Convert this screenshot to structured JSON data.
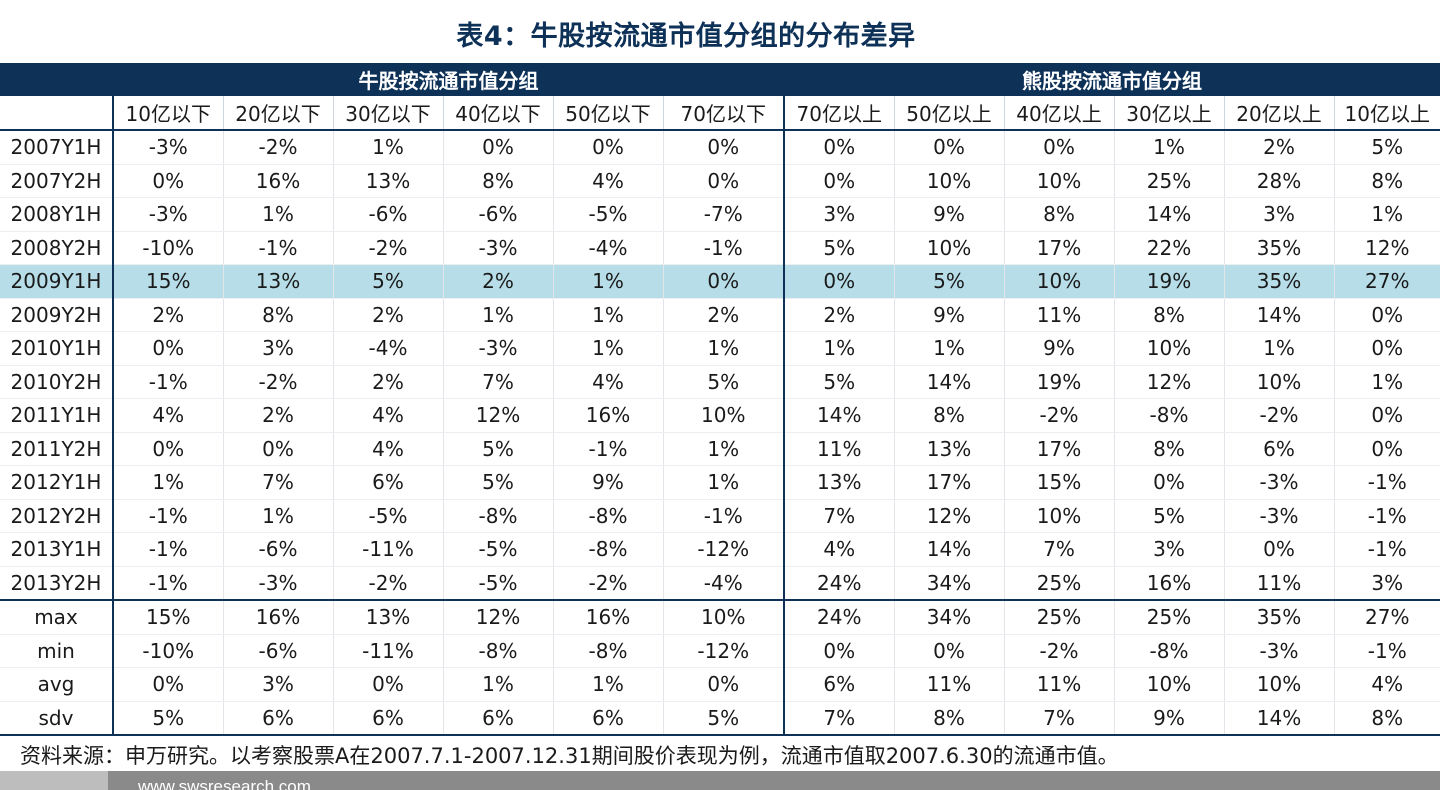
{
  "title": "表4：牛股按流通市值分组的分布差异",
  "groups": {
    "bull": "牛股按流通市值分组",
    "bear": "熊股按流通市值分组"
  },
  "columns": [
    "10亿以下",
    "20亿以下",
    "30亿以下",
    "40亿以下",
    "50亿以下",
    "70亿以下",
    "70亿以上",
    "50亿以上",
    "40亿以上",
    "30亿以上",
    "20亿以上",
    "10亿以上"
  ],
  "rows": [
    {
      "label": "2007Y1H",
      "values": [
        "-3%",
        "-2%",
        "1%",
        "0%",
        "0%",
        "0%",
        "0%",
        "0%",
        "0%",
        "1%",
        "2%",
        "5%"
      ]
    },
    {
      "label": "2007Y2H",
      "values": [
        "0%",
        "16%",
        "13%",
        "8%",
        "4%",
        "0%",
        "0%",
        "10%",
        "10%",
        "25%",
        "28%",
        "8%"
      ]
    },
    {
      "label": "2008Y1H",
      "values": [
        "-3%",
        "1%",
        "-6%",
        "-6%",
        "-5%",
        "-7%",
        "3%",
        "9%",
        "8%",
        "14%",
        "3%",
        "1%"
      ]
    },
    {
      "label": "2008Y2H",
      "values": [
        "-10%",
        "-1%",
        "-2%",
        "-3%",
        "-4%",
        "-1%",
        "5%",
        "10%",
        "17%",
        "22%",
        "35%",
        "12%"
      ]
    },
    {
      "label": "2009Y1H",
      "values": [
        "15%",
        "13%",
        "5%",
        "2%",
        "1%",
        "0%",
        "0%",
        "5%",
        "10%",
        "19%",
        "35%",
        "27%"
      ]
    },
    {
      "label": "2009Y2H",
      "values": [
        "2%",
        "8%",
        "2%",
        "1%",
        "1%",
        "2%",
        "2%",
        "9%",
        "11%",
        "8%",
        "14%",
        "0%"
      ]
    },
    {
      "label": "2010Y1H",
      "values": [
        "0%",
        "3%",
        "-4%",
        "-3%",
        "1%",
        "1%",
        "1%",
        "1%",
        "9%",
        "10%",
        "1%",
        "0%"
      ]
    },
    {
      "label": "2010Y2H",
      "values": [
        "-1%",
        "-2%",
        "2%",
        "7%",
        "4%",
        "5%",
        "5%",
        "14%",
        "19%",
        "12%",
        "10%",
        "1%"
      ]
    },
    {
      "label": "2011Y1H",
      "values": [
        "4%",
        "2%",
        "4%",
        "12%",
        "16%",
        "10%",
        "14%",
        "8%",
        "-2%",
        "-8%",
        "-2%",
        "0%"
      ]
    },
    {
      "label": "2011Y2H",
      "values": [
        "0%",
        "0%",
        "4%",
        "5%",
        "-1%",
        "1%",
        "11%",
        "13%",
        "17%",
        "8%",
        "6%",
        "0%"
      ]
    },
    {
      "label": "2012Y1H",
      "values": [
        "1%",
        "7%",
        "6%",
        "5%",
        "9%",
        "1%",
        "13%",
        "17%",
        "15%",
        "0%",
        "-3%",
        "-1%"
      ]
    },
    {
      "label": "2012Y2H",
      "values": [
        "-1%",
        "1%",
        "-5%",
        "-8%",
        "-8%",
        "-1%",
        "7%",
        "12%",
        "10%",
        "5%",
        "-3%",
        "-1%"
      ]
    },
    {
      "label": "2013Y1H",
      "values": [
        "-1%",
        "-6%",
        "-11%",
        "-5%",
        "-8%",
        "-12%",
        "4%",
        "14%",
        "7%",
        "3%",
        "0%",
        "-1%"
      ]
    },
    {
      "label": "2013Y2H",
      "values": [
        "-1%",
        "-3%",
        "-2%",
        "-5%",
        "-2%",
        "-4%",
        "24%",
        "34%",
        "25%",
        "16%",
        "11%",
        "3%"
      ]
    }
  ],
  "stats": [
    {
      "label": "max",
      "values": [
        "15%",
        "16%",
        "13%",
        "12%",
        "16%",
        "10%",
        "24%",
        "34%",
        "25%",
        "25%",
        "35%",
        "27%"
      ]
    },
    {
      "label": "min",
      "values": [
        "-10%",
        "-6%",
        "-11%",
        "-8%",
        "-8%",
        "-12%",
        "0%",
        "0%",
        "-2%",
        "-8%",
        "-3%",
        "-1%"
      ]
    },
    {
      "label": "avg",
      "values": [
        "0%",
        "3%",
        "0%",
        "1%",
        "1%",
        "0%",
        "6%",
        "11%",
        "11%",
        "10%",
        "10%",
        "4%"
      ]
    },
    {
      "label": "sdv",
      "values": [
        "5%",
        "6%",
        "6%",
        "6%",
        "6%",
        "5%",
        "7%",
        "8%",
        "7%",
        "9%",
        "14%",
        "8%"
      ]
    }
  ],
  "highlighted_row": "2009Y1H",
  "source": "资料来源：申万研究。以考察股票A在2007.7.1-2007.12.31期间股价表现为例，流通市值取2007.6.30的流通市值。",
  "footer_url": "www.swsresearch.com",
  "colors": {
    "navy": "#0e3158",
    "highlight": "#b6dde8",
    "footer": "#8a8a8a"
  }
}
